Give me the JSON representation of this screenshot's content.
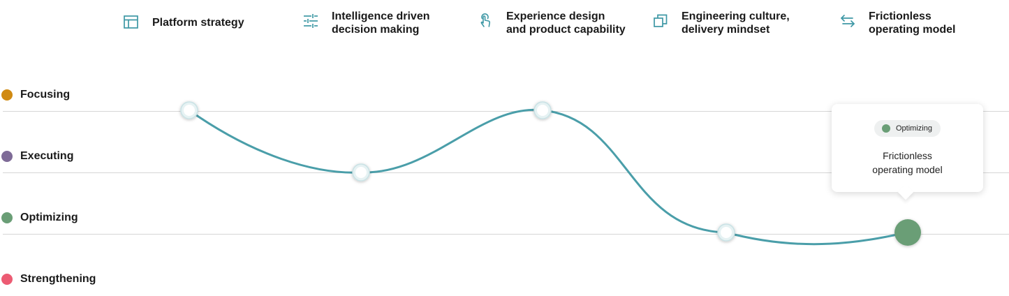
{
  "colors": {
    "line": "#4a9ea9",
    "icon": "#3e98a5",
    "grid": "#d6d6d6",
    "focusing": "#d08a12",
    "executing": "#7e6b97",
    "optimizing": "#6a9e76",
    "strengthening": "#ec5b73"
  },
  "pillars": [
    {
      "label": "Platform strategy",
      "icon": "layout-icon"
    },
    {
      "label": "Intelligence driven\ndecision making",
      "icon": "sliders-icon"
    },
    {
      "label": "Experience design\nand product capability",
      "icon": "touch-icon"
    },
    {
      "label": "Engineering culture,\ndelivery mindset",
      "icon": "copy-icon"
    },
    {
      "label": "Frictionless\noperating model",
      "icon": "swap-arrows-icon"
    }
  ],
  "tooltip": {
    "badge": "Optimizing",
    "text": "Frictionless\noperating model"
  },
  "chart_data": {
    "type": "line",
    "categories": [
      "Platform strategy",
      "Intelligence driven decision making",
      "Experience design and product capability",
      "Engineering culture, delivery mindset",
      "Frictionless operating model"
    ],
    "levels": [
      "Focusing",
      "Executing",
      "Optimizing",
      "Strengthening"
    ],
    "series": [
      {
        "values": [
          "Focusing",
          "Executing",
          "Focusing",
          "Optimizing",
          "Optimizing"
        ]
      }
    ],
    "highlighted_point": {
      "category": "Frictionless operating model",
      "value": "Optimizing"
    },
    "smooth": true,
    "grid": true
  }
}
